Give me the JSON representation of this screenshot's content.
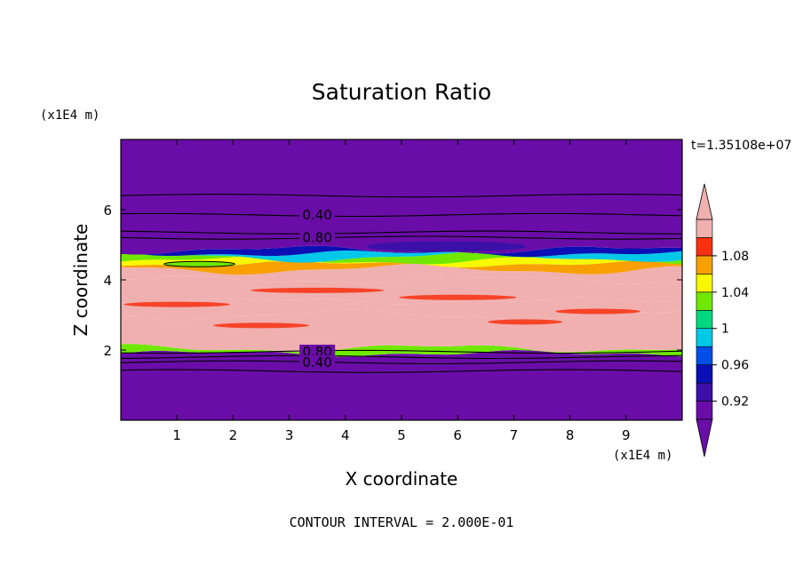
{
  "chart_data": {
    "type": "heatmap",
    "title": "Saturation Ratio",
    "xlabel": "X coordinate",
    "ylabel": "Z coordinate",
    "x_unit": "(x1E4 m)",
    "y_unit": "(x1E4 m)",
    "time_label": "t=1.35108e+07",
    "footer": "CONTOUR INTERVAL = 2.000E-01",
    "xlim": [
      0,
      10
    ],
    "ylim": [
      0,
      8
    ],
    "x_ticks": [
      "1",
      "2",
      "3",
      "4",
      "5",
      "6",
      "7",
      "8",
      "9"
    ],
    "y_ticks": [
      "2",
      "4",
      "6"
    ],
    "colorbar": {
      "labels": [
        "1.08",
        "1.04",
        "1",
        "0.96",
        "0.92"
      ],
      "levels": [
        0.9,
        0.92,
        0.94,
        0.96,
        0.98,
        1.0,
        1.02,
        1.04,
        1.06,
        1.08,
        1.1
      ],
      "colors": [
        "#6a0da8",
        "#3c10a8",
        "#0a10b4",
        "#0050e8",
        "#00c8e8",
        "#00d880",
        "#70e800",
        "#f8f800",
        "#f8a000",
        "#f83010",
        "#f0b0b0"
      ],
      "under_color": "#6a0da8",
      "over_color": "#f0b0b0"
    },
    "contour_labels": [
      "0.40",
      "0.80",
      "0.80",
      "0.40"
    ],
    "bands": [
      {
        "zmin": 0.0,
        "zmax": 1.9,
        "value": 0.2
      },
      {
        "zmin": 1.9,
        "zmax": 2.05,
        "value": 1.0
      },
      {
        "zmin": 2.05,
        "zmax": 3.0,
        "value": 1.1
      },
      {
        "zmin": 3.0,
        "zmax": 3.4,
        "value": 1.08
      },
      {
        "zmin": 3.4,
        "zmax": 4.0,
        "value": 1.1
      },
      {
        "zmin": 4.0,
        "zmax": 4.3,
        "value": 1.08
      },
      {
        "zmin": 4.3,
        "zmax": 4.45,
        "value": 1.05
      },
      {
        "zmin": 4.45,
        "zmax": 4.55,
        "value": 1.03
      },
      {
        "zmin": 4.55,
        "zmax": 4.65,
        "value": 1.0
      },
      {
        "zmin": 4.65,
        "zmax": 4.75,
        "value": 0.97
      },
      {
        "zmin": 4.75,
        "zmax": 4.85,
        "value": 0.93
      },
      {
        "zmin": 4.85,
        "zmax": 8.0,
        "value": 0.5
      }
    ]
  }
}
